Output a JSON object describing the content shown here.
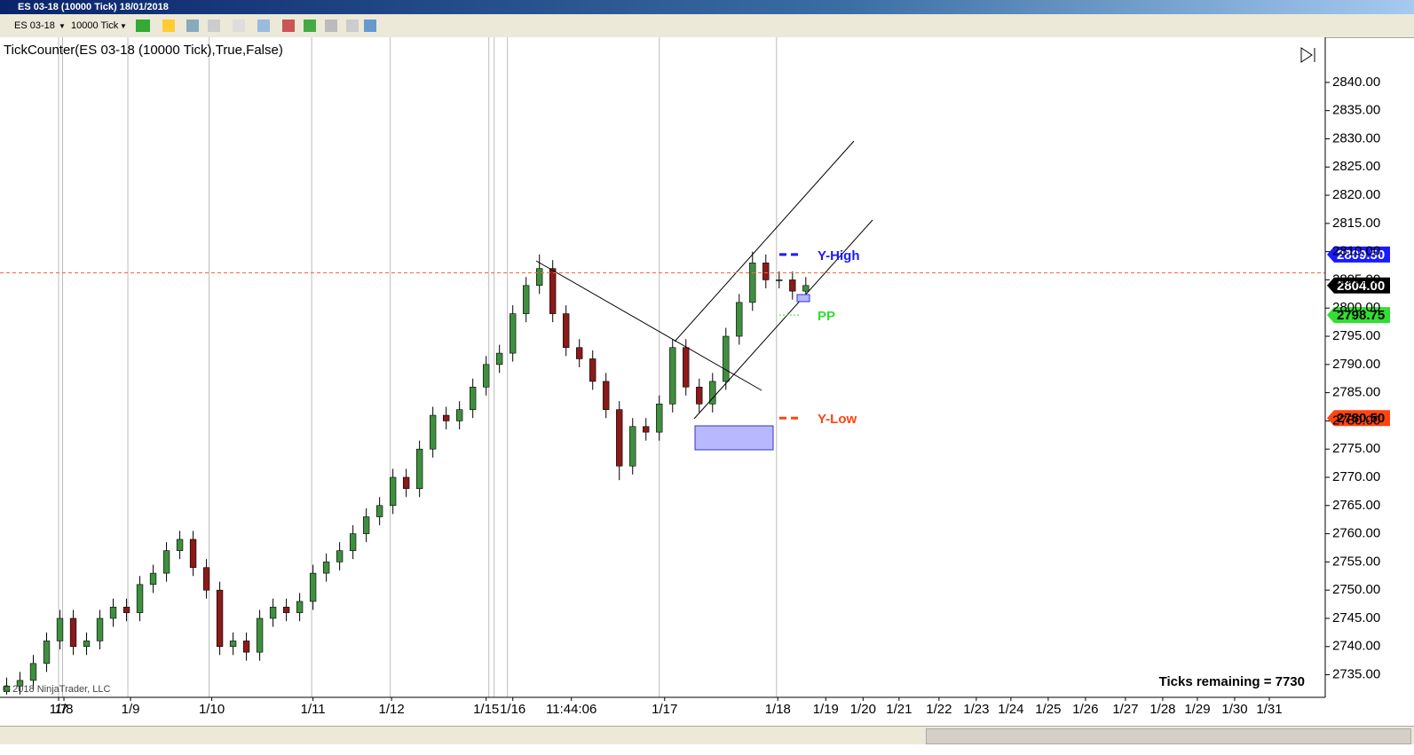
{
  "window": {
    "title": "ES 03-18 (10000 Tick)  18/01/2018",
    "instrument": "ES 03-18",
    "interval": "10000 Tick"
  },
  "chart_data": {
    "type": "candlestick",
    "indicator_label": "TickCounter(ES 03-18 (10000 Tick),True,False)",
    "copyright": "© 2018 NinjaTrader, LLC",
    "ticks_remaining": "Ticks remaining = 7730",
    "up_color": "#3f8f3f",
    "down_color": "#8b1a1a",
    "open": [
      2732,
      2733,
      2734,
      2737,
      2741,
      2745,
      2740,
      2741,
      2745,
      2747,
      2746,
      2751,
      2753,
      2757,
      2759,
      2754,
      2750,
      2740,
      2741,
      2739,
      2745,
      2747,
      2746,
      2748,
      2753,
      2755,
      2757,
      2760,
      2763,
      2765,
      2770,
      2768,
      2775,
      2781,
      2780,
      2782,
      2786,
      2790,
      2792,
      2799,
      2804,
      2807,
      2799,
      2793,
      2791,
      2787,
      2782,
      2772,
      2779,
      2778,
      2783,
      2793,
      2786,
      2783,
      2787,
      2795,
      2801,
      2808,
      2805,
      2805,
      2803
    ],
    "high": [
      2734.5,
      2735.5,
      2738.5,
      2742.5,
      2746.5,
      2746.5,
      2742.5,
      2746.5,
      2748.5,
      2748.5,
      2752.5,
      2754.5,
      2758.5,
      2760.5,
      2760.5,
      2755.5,
      2751.5,
      2742.5,
      2742.5,
      2746.5,
      2748.5,
      2748.5,
      2749.5,
      2754.5,
      2756.5,
      2758.5,
      2761.5,
      2764.5,
      2766.5,
      2771.5,
      2771.5,
      2776.5,
      2782.5,
      2782.5,
      2783.5,
      2787.5,
      2791.5,
      2793.5,
      2800.5,
      2805.5,
      2809.5,
      2808.5,
      2800.5,
      2794.5,
      2792.5,
      2788.5,
      2783.5,
      2780.5,
      2780.5,
      2784.5,
      2794.5,
      2794.5,
      2787.5,
      2788.5,
      2796.5,
      2802.5,
      2810,
      2809.5,
      2806.5,
      2806.5,
      2805.5
    ],
    "low": [
      2731.5,
      2731.5,
      2732.5,
      2735.5,
      2739.5,
      2738.5,
      2738.5,
      2739.5,
      2743.5,
      2744.5,
      2744.5,
      2749.5,
      2751.5,
      2755.5,
      2752.5,
      2748.5,
      2738.5,
      2738.5,
      2737.5,
      2737.5,
      2743.5,
      2744.5,
      2744.5,
      2746.5,
      2751.5,
      2753.5,
      2755.5,
      2758.5,
      2761.5,
      2763.5,
      2766.5,
      2766.5,
      2773.5,
      2778.5,
      2778.5,
      2780.5,
      2784.5,
      2788.5,
      2790.5,
      2797.5,
      2802.5,
      2797.5,
      2791.5,
      2789.5,
      2785.5,
      2780.5,
      2769.5,
      2770.5,
      2776.5,
      2776.5,
      2781.5,
      2784.5,
      2781.5,
      2781.5,
      2785.5,
      2793.5,
      2799.5,
      2803.5,
      2803.5,
      2801.5,
      2801.5
    ],
    "close": [
      2733,
      2734,
      2737,
      2741,
      2745,
      2740,
      2741,
      2745,
      2747,
      2746,
      2751,
      2753,
      2757,
      2759,
      2754,
      2750,
      2740,
      2741,
      2739,
      2745,
      2747,
      2746,
      2748,
      2753,
      2755,
      2757,
      2760,
      2763,
      2765,
      2770,
      2768,
      2775,
      2781,
      2780,
      2782,
      2786,
      2790,
      2792,
      2799,
      2804,
      2807,
      2799,
      2793,
      2791,
      2787,
      2782,
      2772,
      2779,
      2778,
      2783,
      2793,
      2786,
      2783,
      2787,
      2795,
      2801,
      2808,
      2805,
      2805,
      2803,
      2804
    ],
    "xlim": [
      -0.5,
      99
    ],
    "xticks": [
      {
        "value": 3.9,
        "label": "1/7"
      },
      {
        "value": 4.3,
        "label": "1/8"
      },
      {
        "value": 9.3,
        "label": "1/9"
      },
      {
        "value": 15.4,
        "label": "1/10"
      },
      {
        "value": 23,
        "label": "1/11"
      },
      {
        "value": 28.9,
        "label": "1/12"
      },
      {
        "value": 36,
        "label": "1/15"
      },
      {
        "value": 38,
        "label": "1/16"
      },
      {
        "value": 42.4,
        "label": "11:44:06"
      },
      {
        "value": 49.4,
        "label": "1/17"
      },
      {
        "value": 57.9,
        "label": "1/18"
      },
      {
        "value": 61.5,
        "label": "1/19"
      },
      {
        "value": 64.3,
        "label": "1/20"
      },
      {
        "value": 67,
        "label": "1/21"
      },
      {
        "value": 70,
        "label": "1/22"
      },
      {
        "value": 72.8,
        "label": "1/23"
      },
      {
        "value": 75.4,
        "label": "1/24"
      },
      {
        "value": 78.2,
        "label": "1/25"
      },
      {
        "value": 81,
        "label": "1/26"
      },
      {
        "value": 84,
        "label": "1/27"
      },
      {
        "value": 86.8,
        "label": "1/28"
      },
      {
        "value": 89.4,
        "label": "1/29"
      },
      {
        "value": 92.2,
        "label": "1/30"
      },
      {
        "value": 94.8,
        "label": "1/31"
      }
    ],
    "session_lines": [
      3.9,
      4.2,
      9.1,
      15.2,
      22.9,
      28.8,
      36.2,
      36.6,
      37.6,
      49,
      57.8
    ],
    "ylim": [
      2731,
      2848
    ],
    "yticks": [
      {
        "value": 2735,
        "label": "2735.00"
      },
      {
        "value": 2740,
        "label": "2740.00"
      },
      {
        "value": 2745,
        "label": "2745.00"
      },
      {
        "value": 2750,
        "label": "2750.00"
      },
      {
        "value": 2755,
        "label": "2755.00"
      },
      {
        "value": 2760,
        "label": "2760.00"
      },
      {
        "value": 2765,
        "label": "2765.00"
      },
      {
        "value": 2770,
        "label": "2770.00"
      },
      {
        "value": 2775,
        "label": "2775.00"
      },
      {
        "value": 2780,
        "label": "2780.00"
      },
      {
        "value": 2785,
        "label": "2785.00"
      },
      {
        "value": 2790,
        "label": "2790.00"
      },
      {
        "value": 2795,
        "label": "2795.00"
      },
      {
        "value": 2800,
        "label": "2800.00"
      },
      {
        "value": 2805,
        "label": "2805.00"
      },
      {
        "value": 2810,
        "label": "2810.00"
      },
      {
        "value": 2815,
        "label": "2815.00"
      },
      {
        "value": 2820,
        "label": "2820.00"
      },
      {
        "value": 2825,
        "label": "2825.00"
      },
      {
        "value": 2830,
        "label": "2830.00"
      },
      {
        "value": 2835,
        "label": "2835.00"
      },
      {
        "value": 2840,
        "label": "2840.00"
      }
    ],
    "reference_line": {
      "value": 2806.25,
      "color": "#ff6633"
    },
    "levels": [
      {
        "name": "Y-High",
        "value": 2809.5,
        "value_label": "2809.50",
        "color": "#1a1aff"
      },
      {
        "name": "PP",
        "value": 2798.75,
        "value_label": "2798.75",
        "color": "#33dd33"
      },
      {
        "name": "Y-Low",
        "value": 2780.5,
        "value_label": "2780.50",
        "color": "#ff4411"
      }
    ],
    "last_price": {
      "value": 2804,
      "label": "2804.00"
    }
  }
}
